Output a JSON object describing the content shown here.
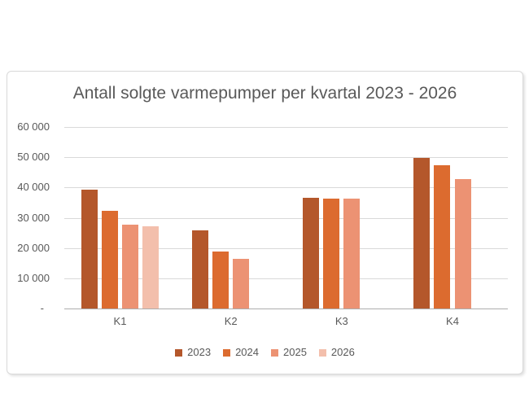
{
  "page": {
    "background": "#FFFFFF"
  },
  "chart": {
    "title": "Antall solgte varmepumper per kvartal 2023 - 2026",
    "colors": {
      "title_text": "#595959",
      "axis_text": "#595959",
      "gridline": "#D9D9D9",
      "axis_line": "#ADADAD",
      "border": "#D9D9D9",
      "background": "#FFFFFF"
    },
    "y_axis": {
      "tick_labels": [
        "60 000",
        "50 000",
        "40 000",
        "30 000",
        "20 000",
        "10 000",
        "-"
      ]
    },
    "x_axis": {
      "tick_labels": [
        "K1",
        "K2",
        "K3",
        "K4"
      ]
    },
    "legend": {
      "items": [
        "2023",
        "2024",
        "2025",
        "2026"
      ]
    }
  },
  "chart_data": {
    "type": "bar",
    "title": "Antall solgte varmepumper per kvartal 2023 - 2026",
    "categories": [
      "K1",
      "K2",
      "K3",
      "K4"
    ],
    "series": [
      {
        "name": "2023",
        "color": "#B4572B",
        "values": [
          39200,
          25700,
          36700,
          49700
        ]
      },
      {
        "name": "2024",
        "color": "#DC6B2F",
        "values": [
          32200,
          18900,
          36200,
          47400
        ]
      },
      {
        "name": "2025",
        "color": "#EC9273",
        "values": [
          27700,
          16300,
          36400,
          42700
        ]
      },
      {
        "name": "2026",
        "color": "#F3BFAC",
        "values": [
          27200,
          null,
          null,
          null
        ]
      }
    ],
    "ylim": [
      0,
      60000
    ],
    "ytick_step": 10000,
    "grid": true,
    "legend_position": "bottom",
    "xlabel": "",
    "ylabel": ""
  }
}
